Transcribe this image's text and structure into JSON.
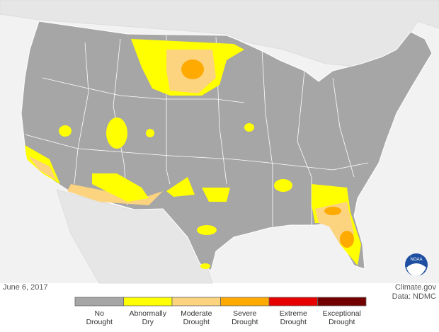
{
  "date": "June 6, 2017",
  "credit": {
    "source": "Climate.gov",
    "data": "Data: NDMC"
  },
  "legend": [
    {
      "lines": [
        "No",
        "Drought"
      ],
      "color": "#a6a6a6"
    },
    {
      "lines": [
        "Abnormally",
        "Dry"
      ],
      "color": "#ffff00"
    },
    {
      "lines": [
        "Moderate",
        "Drought"
      ],
      "color": "#fcd37f"
    },
    {
      "lines": [
        "Severe",
        "Drought"
      ],
      "color": "#ffaa00"
    },
    {
      "lines": [
        "Extreme",
        "Drought"
      ],
      "color": "#e60000"
    },
    {
      "lines": [
        "Exceptional",
        "Drought"
      ],
      "color": "#730000"
    }
  ],
  "logo": "NOAA"
}
